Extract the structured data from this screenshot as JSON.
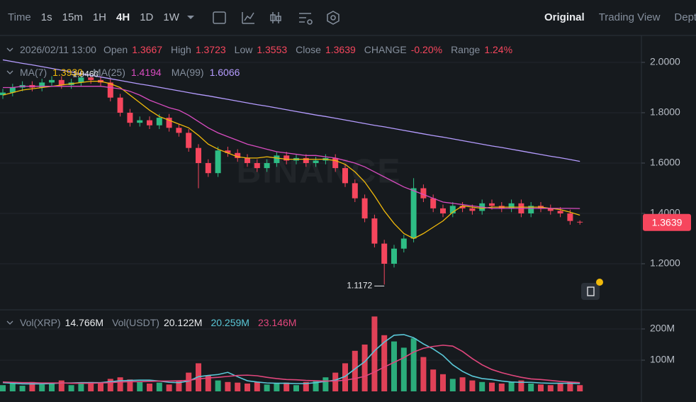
{
  "toolbar": {
    "intervals": [
      "Time",
      "1s",
      "15m",
      "1H",
      "4H",
      "1D",
      "1W"
    ],
    "active_interval": "4H",
    "views": [
      "Original",
      "Trading View",
      "Depth"
    ],
    "active_view": "Original"
  },
  "info": {
    "date": "2026/02/11 13:00",
    "items": [
      {
        "label": "Open",
        "value": "1.3667"
      },
      {
        "label": "High",
        "value": "1.3723"
      },
      {
        "label": "Low",
        "value": "1.3553"
      },
      {
        "label": "Close",
        "value": "1.3639"
      },
      {
        "label": "CHANGE",
        "value": "-0.20%"
      },
      {
        "label": "Range",
        "value": "1.24%"
      }
    ]
  },
  "volume_legend": [
    {
      "label": "Vol(XRP)",
      "value": "14.766M",
      "color": "#eaecef"
    },
    {
      "label": "Vol(USDT)",
      "value": "20.122M",
      "color": "#eaecef"
    },
    {
      "label": null,
      "value": "20.259M",
      "color": "#5ac8d8"
    },
    {
      "label": null,
      "value": "23.146M",
      "color": "#e0467c"
    }
  ],
  "chart_data": {
    "type": "candlestick",
    "watermark": "BINANCE",
    "up_color": "#2ebd85",
    "down_color": "#f6465d",
    "open": [
      1.87,
      1.88,
      1.9,
      1.91,
      1.9,
      1.92,
      1.93,
      1.91,
      1.92,
      1.94,
      1.93,
      1.92,
      1.86,
      1.8,
      1.76,
      1.77,
      1.75,
      1.78,
      1.74,
      1.72,
      1.66,
      1.6,
      1.56,
      1.65,
      1.64,
      1.62,
      1.6,
      1.58,
      1.6,
      1.63,
      1.61,
      1.62,
      1.6,
      1.61,
      1.62,
      1.58,
      1.52,
      1.46,
      1.38,
      1.28,
      1.2,
      1.26,
      1.3,
      1.5,
      1.46,
      1.42,
      1.4,
      1.43,
      1.42,
      1.41,
      1.44,
      1.43,
      1.42,
      1.44,
      1.4,
      1.43,
      1.42,
      1.41,
      1.4,
      1.3667
    ],
    "high": [
      1.895,
      1.915,
      1.925,
      1.925,
      1.935,
      1.945,
      1.945,
      1.935,
      1.946,
      1.945,
      1.945,
      1.935,
      1.875,
      1.815,
      1.785,
      1.785,
      1.795,
      1.795,
      1.755,
      1.735,
      1.675,
      1.615,
      1.665,
      1.665,
      1.655,
      1.635,
      1.615,
      1.615,
      1.645,
      1.645,
      1.635,
      1.635,
      1.625,
      1.635,
      1.635,
      1.595,
      1.535,
      1.475,
      1.395,
      1.295,
      1.275,
      1.315,
      1.54,
      1.515,
      1.475,
      1.435,
      1.445,
      1.445,
      1.435,
      1.455,
      1.455,
      1.445,
      1.455,
      1.455,
      1.445,
      1.445,
      1.435,
      1.425,
      1.415,
      1.3723
    ],
    "low": [
      1.855,
      1.865,
      1.885,
      1.885,
      1.885,
      1.905,
      1.895,
      1.895,
      1.905,
      1.915,
      1.905,
      1.845,
      1.785,
      1.745,
      1.745,
      1.735,
      1.735,
      1.725,
      1.705,
      1.645,
      1.5,
      1.545,
      1.545,
      1.625,
      1.605,
      1.585,
      1.565,
      1.565,
      1.585,
      1.595,
      1.595,
      1.585,
      1.585,
      1.595,
      1.565,
      1.505,
      1.445,
      1.365,
      1.265,
      1.1172,
      1.185,
      1.245,
      1.285,
      1.445,
      1.405,
      1.385,
      1.385,
      1.405,
      1.395,
      1.395,
      1.415,
      1.405,
      1.405,
      1.385,
      1.385,
      1.405,
      1.395,
      1.385,
      1.355,
      1.3553
    ],
    "close": [
      1.88,
      1.9,
      1.91,
      1.9,
      1.92,
      1.93,
      1.91,
      1.92,
      1.94,
      1.93,
      1.92,
      1.86,
      1.8,
      1.76,
      1.77,
      1.75,
      1.78,
      1.74,
      1.72,
      1.66,
      1.6,
      1.56,
      1.65,
      1.64,
      1.62,
      1.6,
      1.58,
      1.6,
      1.63,
      1.61,
      1.62,
      1.6,
      1.61,
      1.62,
      1.58,
      1.52,
      1.46,
      1.38,
      1.28,
      1.2,
      1.26,
      1.3,
      1.5,
      1.46,
      1.42,
      1.4,
      1.43,
      1.42,
      1.41,
      1.44,
      1.43,
      1.42,
      1.44,
      1.4,
      1.43,
      1.42,
      1.41,
      1.4,
      1.37,
      1.3639
    ],
    "last_price_label": "1.3639",
    "annotations": [
      {
        "text": "1.9460",
        "value": 1.946,
        "series": "high"
      },
      {
        "text": "1.1172",
        "value": 1.1172,
        "series": "low"
      }
    ],
    "ma_series": [
      {
        "name": "MA(7)",
        "value_label": "1.3930",
        "color": "#f0b90b",
        "values": [
          1.87,
          1.88,
          1.89,
          1.895,
          1.9,
          1.905,
          1.91,
          1.915,
          1.92,
          1.925,
          1.925,
          1.915,
          1.9,
          1.87,
          1.84,
          1.81,
          1.785,
          1.77,
          1.755,
          1.74,
          1.71,
          1.675,
          1.655,
          1.64,
          1.625,
          1.62,
          1.62,
          1.625,
          1.62,
          1.615,
          1.615,
          1.615,
          1.615,
          1.615,
          1.61,
          1.595,
          1.565,
          1.525,
          1.47,
          1.41,
          1.36,
          1.32,
          1.3,
          1.32,
          1.345,
          1.37,
          1.405,
          1.43,
          1.425,
          1.42,
          1.425,
          1.425,
          1.425,
          1.425,
          1.425,
          1.425,
          1.42,
          1.415,
          1.405,
          1.393
        ]
      },
      {
        "name": "MA(25)",
        "value_label": "1.4194",
        "color": "#d84cc0",
        "values": [
          1.9,
          1.9,
          1.905,
          1.905,
          1.905,
          1.905,
          1.905,
          1.905,
          1.905,
          1.905,
          1.905,
          1.9,
          1.895,
          1.885,
          1.87,
          1.85,
          1.835,
          1.82,
          1.81,
          1.79,
          1.765,
          1.74,
          1.72,
          1.705,
          1.69,
          1.675,
          1.665,
          1.655,
          1.645,
          1.64,
          1.635,
          1.63,
          1.63,
          1.625,
          1.62,
          1.61,
          1.6,
          1.585,
          1.565,
          1.545,
          1.525,
          1.505,
          1.49,
          1.475,
          1.46,
          1.445,
          1.44,
          1.435,
          1.43,
          1.425,
          1.42,
          1.42,
          1.42,
          1.42,
          1.42,
          1.42,
          1.42,
          1.42,
          1.42,
          1.4194
        ]
      },
      {
        "name": "MA(99)",
        "value_label": "1.6066",
        "color": "#b59cff",
        "values": [
          2.01,
          2.003,
          1.996,
          1.99,
          1.983,
          1.976,
          1.969,
          1.962,
          1.955,
          1.949,
          1.942,
          1.935,
          1.928,
          1.921,
          1.914,
          1.908,
          1.901,
          1.894,
          1.887,
          1.88,
          1.873,
          1.867,
          1.86,
          1.853,
          1.846,
          1.839,
          1.832,
          1.826,
          1.819,
          1.812,
          1.805,
          1.798,
          1.791,
          1.785,
          1.778,
          1.771,
          1.764,
          1.757,
          1.75,
          1.744,
          1.737,
          1.73,
          1.723,
          1.716,
          1.709,
          1.703,
          1.696,
          1.689,
          1.682,
          1.675,
          1.668,
          1.662,
          1.655,
          1.648,
          1.641,
          1.634,
          1.627,
          1.621,
          1.614,
          1.6066
        ]
      }
    ],
    "ylim": [
      1.0225,
      2.107
    ],
    "yticks": [
      {
        "value": 2.0,
        "label": "2.0000"
      },
      {
        "value": 1.8,
        "label": "1.8000"
      },
      {
        "value": 1.6,
        "label": "1.6000"
      },
      {
        "value": 1.4,
        "label": "1.4000"
      },
      {
        "value": 1.2,
        "label": "1.2000"
      }
    ],
    "volume": [
      20,
      25,
      18,
      30,
      22,
      28,
      35,
      20,
      25,
      30,
      28,
      40,
      45,
      38,
      30,
      25,
      28,
      22,
      35,
      60,
      90,
      50,
      35,
      30,
      28,
      25,
      30,
      22,
      25,
      28,
      20,
      30,
      35,
      45,
      60,
      90,
      130,
      150,
      240,
      180,
      160,
      140,
      170,
      110,
      70,
      55,
      40,
      45,
      35,
      30,
      28,
      25,
      30,
      35,
      25,
      22,
      20,
      25,
      30,
      20
    ],
    "volume_ma": [
      {
        "color": "#5ac8d8",
        "values": [
          28,
          26,
          24,
          24,
          24,
          25,
          27,
          27,
          28,
          28,
          28,
          31,
          34,
          35,
          36,
          36,
          33,
          29,
          28,
          33,
          47,
          51,
          54,
          61,
          47,
          34,
          30,
          27,
          26,
          26,
          25,
          25,
          28,
          32,
          36,
          48,
          72,
          95,
          130,
          158,
          180,
          182,
          172,
          152,
          136,
          115,
          85,
          64,
          49,
          41,
          38,
          33,
          30,
          29,
          29,
          27,
          26,
          26,
          26,
          25
        ]
      },
      {
        "color": "#e0467c",
        "values": [
          30,
          29,
          28,
          28,
          27,
          27,
          27,
          26,
          26,
          26,
          27,
          28,
          30,
          31,
          31,
          32,
          33,
          33,
          34,
          35,
          40,
          43,
          45,
          48,
          51,
          52,
          50,
          45,
          41,
          38,
          37,
          35,
          34,
          33,
          33,
          36,
          41,
          48,
          62,
          78,
          93,
          108,
          126,
          138,
          144,
          148,
          145,
          128,
          105,
          85,
          70,
          60,
          52,
          45,
          40,
          38,
          35,
          32,
          30,
          28
        ]
      }
    ],
    "vol_ylim": [
      0,
      254.5
    ],
    "vol_yticks": [
      {
        "value": 200,
        "label": "200M"
      },
      {
        "value": 100,
        "label": "100M"
      }
    ],
    "grid": true
  }
}
